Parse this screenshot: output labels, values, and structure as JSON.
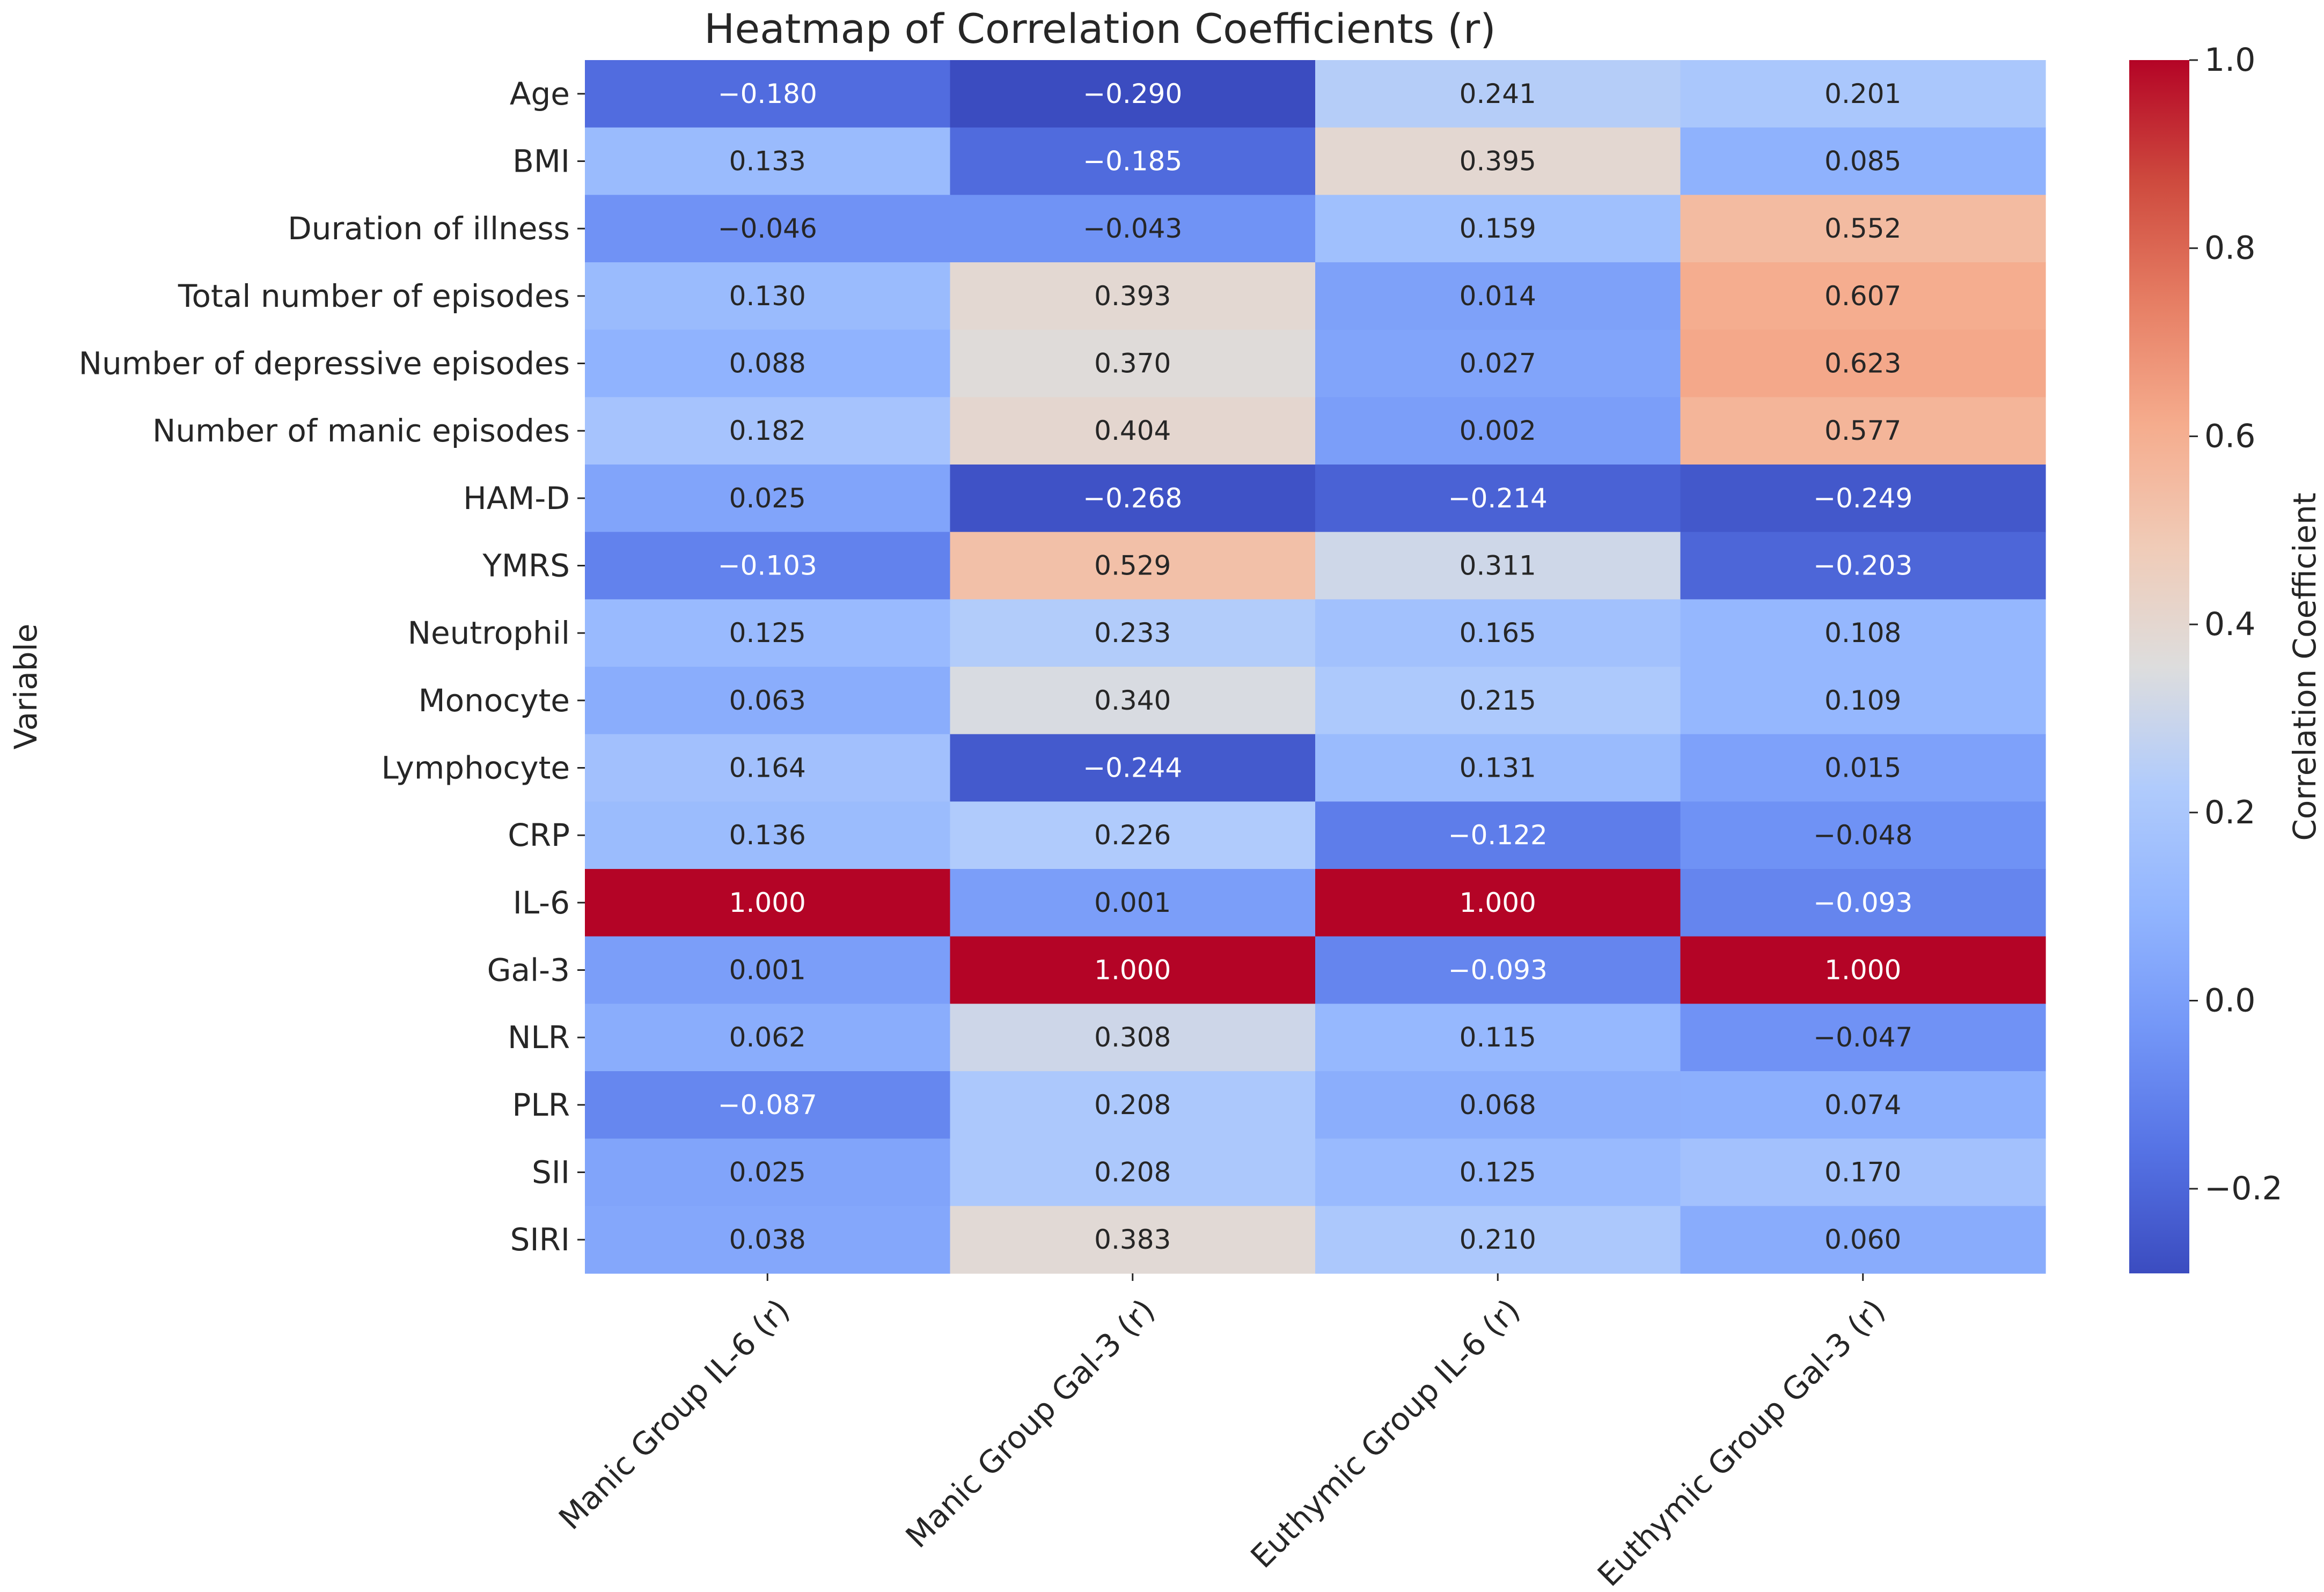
{
  "chart_data": {
    "type": "heatmap",
    "title": "Heatmap of Correlation Coefficients (r)",
    "ylabel": "Variable",
    "xlabel": "",
    "colorbar_label": "Correlation Coefficient",
    "colorbar_ticks": [
      "1.0",
      "0.8",
      "0.6",
      "0.4",
      "0.2",
      "0.0",
      "−0.2"
    ],
    "colorbar_tick_values": [
      1.0,
      0.8,
      0.6,
      0.4,
      0.2,
      0.0,
      -0.2
    ],
    "vmin": -0.29,
    "vmax": 1.0,
    "colormap": "coolwarm",
    "columns": [
      "Manic Group IL-6 (r)",
      "Manic Group Gal-3 (r)",
      "Euthymic Group IL-6 (r)",
      "Euthymic Group Gal-3 (r)"
    ],
    "rows": [
      "Age",
      "BMI",
      "Duration of illness",
      "Total number of episodes",
      "Number of depressive episodes",
      "Number of manic episodes",
      "HAM-D",
      "YMRS",
      "Neutrophil",
      "Monocyte",
      "Lymphocyte",
      "CRP",
      "IL-6",
      "Gal-3",
      "NLR",
      "PLR",
      "SII",
      "SIRI"
    ],
    "values": [
      [
        -0.18,
        -0.29,
        0.241,
        0.201
      ],
      [
        0.133,
        -0.185,
        0.395,
        0.085
      ],
      [
        -0.046,
        -0.043,
        0.159,
        0.552
      ],
      [
        0.13,
        0.393,
        0.014,
        0.607
      ],
      [
        0.088,
        0.37,
        0.027,
        0.623
      ],
      [
        0.182,
        0.404,
        0.002,
        0.577
      ],
      [
        0.025,
        -0.268,
        -0.214,
        -0.249
      ],
      [
        -0.103,
        0.529,
        0.311,
        -0.203
      ],
      [
        0.125,
        0.233,
        0.165,
        0.108
      ],
      [
        0.063,
        0.34,
        0.215,
        0.109
      ],
      [
        0.164,
        -0.244,
        0.131,
        0.015
      ],
      [
        0.136,
        0.226,
        -0.122,
        -0.048
      ],
      [
        1.0,
        0.001,
        1.0,
        -0.093
      ],
      [
        0.001,
        1.0,
        -0.093,
        1.0
      ],
      [
        0.062,
        0.308,
        0.115,
        -0.047
      ],
      [
        -0.087,
        0.208,
        0.068,
        0.074
      ],
      [
        0.025,
        0.208,
        0.125,
        0.17
      ],
      [
        0.038,
        0.383,
        0.21,
        0.06
      ]
    ],
    "labels": [
      [
        "−0.180",
        "−0.290",
        "0.241",
        "0.201"
      ],
      [
        "0.133",
        "−0.185",
        "0.395",
        "0.085"
      ],
      [
        "−0.046",
        "−0.043",
        "0.159",
        "0.552"
      ],
      [
        "0.130",
        "0.393",
        "0.014",
        "0.607"
      ],
      [
        "0.088",
        "0.370",
        "0.027",
        "0.623"
      ],
      [
        "0.182",
        "0.404",
        "0.002",
        "0.577"
      ],
      [
        "0.025",
        "−0.268",
        "−0.214",
        "−0.249"
      ],
      [
        "−0.103",
        "0.529",
        "0.311",
        "−0.203"
      ],
      [
        "0.125",
        "0.233",
        "0.165",
        "0.108"
      ],
      [
        "0.063",
        "0.340",
        "0.215",
        "0.109"
      ],
      [
        "0.164",
        "−0.244",
        "0.131",
        "0.015"
      ],
      [
        "0.136",
        "0.226",
        "−0.122",
        "−0.048"
      ],
      [
        "1.000",
        "0.001",
        "1.000",
        "−0.093"
      ],
      [
        "0.001",
        "1.000",
        "−0.093",
        "1.000"
      ],
      [
        "0.062",
        "0.308",
        "0.115",
        "−0.047"
      ],
      [
        "−0.087",
        "0.208",
        "0.068",
        "0.074"
      ],
      [
        "0.025",
        "0.208",
        "0.125",
        "0.170"
      ],
      [
        "0.038",
        "0.383",
        "0.210",
        "0.060"
      ]
    ]
  }
}
